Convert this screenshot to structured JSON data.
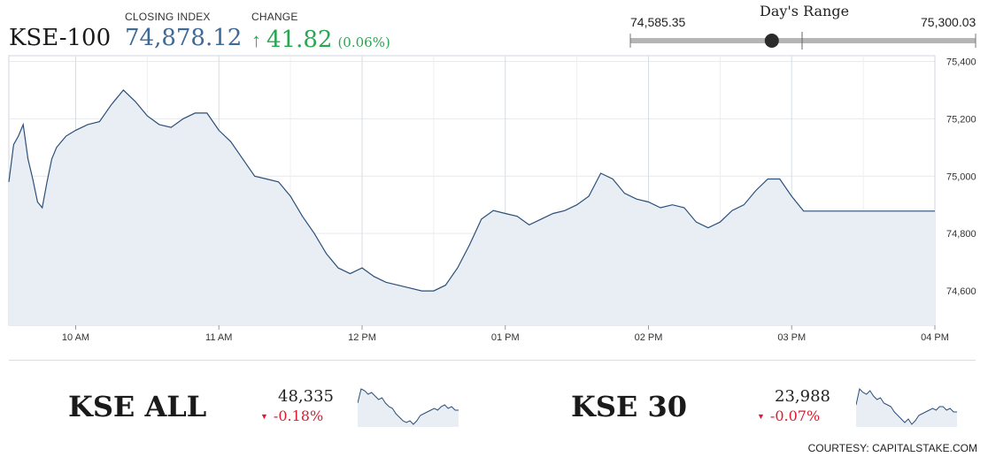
{
  "header": {
    "title": "KSE-100",
    "closing_label": "CLOSING INDEX",
    "closing_value": "74,878.12",
    "change_label": "CHANGE",
    "change_arrow": "↑",
    "change_value": "41.82",
    "change_pct": "(0.06%)",
    "up_color": "#2aa651",
    "down_color": "#e0192e"
  },
  "days_range": {
    "title": "Day's Range",
    "low_label": "74,585.35",
    "high_label": "75,300.03",
    "low": 74585.35,
    "high": 75300.03,
    "current": 74878.12
  },
  "chart_data": [
    {
      "type": "area",
      "title": "KSE-100",
      "xlabel": "",
      "ylabel": "",
      "xlim": [
        "09:32",
        "16:00"
      ],
      "ylim": [
        74480,
        75420
      ],
      "x_ticks": [
        "10 AM",
        "11 AM",
        "12 PM",
        "01 PM",
        "02 PM",
        "03 PM",
        "04 PM"
      ],
      "y_ticks": [
        "75,400",
        "75,200",
        "75,000",
        "74,800",
        "74,600"
      ],
      "grid": true,
      "color": "#2b4f78",
      "fill": "#e8eef4",
      "x": [
        "09:32",
        "09:34",
        "09:36",
        "09:38",
        "09:40",
        "09:42",
        "09:44",
        "09:46",
        "09:48",
        "09:50",
        "09:52",
        "09:54",
        "09:56",
        "09:58",
        "10:00",
        "10:05",
        "10:10",
        "10:15",
        "10:20",
        "10:25",
        "10:30",
        "10:35",
        "10:40",
        "10:45",
        "10:50",
        "10:55",
        "11:00",
        "11:05",
        "11:10",
        "11:15",
        "11:20",
        "11:25",
        "11:30",
        "11:35",
        "11:40",
        "11:45",
        "11:50",
        "11:55",
        "12:00",
        "12:05",
        "12:10",
        "12:15",
        "12:20",
        "12:25",
        "12:30",
        "12:35",
        "12:40",
        "12:45",
        "12:50",
        "12:55",
        "13:00",
        "13:05",
        "13:10",
        "13:15",
        "13:20",
        "13:25",
        "13:30",
        "13:35",
        "13:40",
        "13:45",
        "13:50",
        "13:55",
        "14:00",
        "14:05",
        "14:10",
        "14:15",
        "14:20",
        "14:25",
        "14:30",
        "14:35",
        "14:40",
        "14:45",
        "14:50",
        "14:55",
        "15:00",
        "15:05",
        "15:10",
        "15:15",
        "15:20",
        "15:25",
        "15:26",
        "15:27",
        "15:30",
        "15:40",
        "15:50",
        "16:00"
      ],
      "values": [
        74980,
        75110,
        75140,
        75180,
        75060,
        74990,
        74910,
        74890,
        74980,
        75060,
        75100,
        75120,
        75140,
        75150,
        75160,
        75180,
        75190,
        75250,
        75300,
        75260,
        75210,
        75180,
        75170,
        75200,
        75220,
        75220,
        75160,
        75120,
        75060,
        75000,
        74990,
        74980,
        74930,
        74860,
        74800,
        74730,
        74680,
        74660,
        74680,
        74650,
        74630,
        74620,
        74610,
        74600,
        74600,
        74620,
        74680,
        74760,
        74850,
        74880,
        74870,
        74860,
        74830,
        74850,
        74870,
        74880,
        74900,
        74930,
        75010,
        74990,
        74940,
        74920,
        74910,
        74890,
        74900,
        74890,
        74840,
        74820,
        74840,
        74880,
        74900,
        74950,
        74990,
        74990,
        74930,
        74878.12,
        74878.12,
        74878.12,
        74878.12,
        74878.12,
        74878.12,
        74878.12,
        74878.12,
        74878.12,
        74878.12,
        74878.12
      ]
    },
    {
      "type": "area",
      "title": "KSE ALL",
      "x": [
        0,
        1,
        2,
        3,
        4,
        5,
        6,
        7,
        8,
        9,
        10,
        11,
        12,
        13,
        14,
        15,
        16,
        17,
        18,
        19,
        20,
        21,
        22,
        23,
        24,
        25,
        26,
        27,
        28,
        29
      ],
      "values": [
        0.6,
        1.0,
        0.95,
        0.85,
        0.9,
        0.8,
        0.7,
        0.75,
        0.6,
        0.5,
        0.45,
        0.3,
        0.2,
        0.1,
        0.05,
        0.1,
        0.0,
        0.1,
        0.25,
        0.3,
        0.35,
        0.4,
        0.45,
        0.4,
        0.5,
        0.55,
        0.45,
        0.5,
        0.4,
        0.4
      ],
      "color": "#2b4f78",
      "fill": "#e8eef4"
    },
    {
      "type": "area",
      "title": "KSE 30",
      "x": [
        0,
        1,
        2,
        3,
        4,
        5,
        6,
        7,
        8,
        9,
        10,
        11,
        12,
        13,
        14,
        15,
        16,
        17,
        18,
        19,
        20,
        21,
        22,
        23,
        24,
        25,
        26,
        27,
        28,
        29
      ],
      "values": [
        0.55,
        1.0,
        0.9,
        0.85,
        0.95,
        0.8,
        0.7,
        0.75,
        0.6,
        0.55,
        0.5,
        0.35,
        0.25,
        0.15,
        0.05,
        0.15,
        0.0,
        0.1,
        0.25,
        0.3,
        0.35,
        0.4,
        0.45,
        0.4,
        0.5,
        0.5,
        0.4,
        0.45,
        0.35,
        0.35
      ],
      "color": "#2b4f78",
      "fill": "#e8eef4"
    }
  ],
  "summaries": [
    {
      "name": "KSE ALL",
      "value": "48,335",
      "caret": "▼",
      "change": "-0.18%"
    },
    {
      "name": "KSE 30",
      "value": "23,988",
      "caret": "▼",
      "change": "-0.07%"
    }
  ],
  "courtesy": "COURTESY: CAPITALSTAKE.COM"
}
